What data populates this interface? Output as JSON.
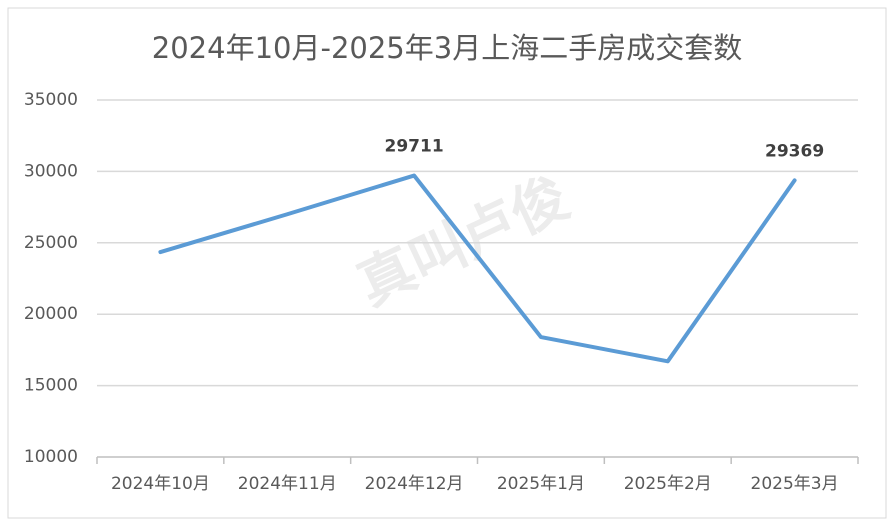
{
  "chart_data": {
    "type": "line",
    "title": "2024年10月-2025年3月上海二手房成交套数",
    "watermark": "真叫卢俊",
    "categories": [
      "2024年10月",
      "2024年11月",
      "2024年12月",
      "2025年1月",
      "2025年2月",
      "2025年3月"
    ],
    "series": [
      {
        "name": "成交套数",
        "color": "#5b9bd5",
        "values": [
          24350,
          27000,
          29711,
          18400,
          16700,
          29369
        ],
        "value_labels": [
          null,
          null,
          "29711",
          null,
          null,
          "29369"
        ]
      }
    ],
    "ylim": [
      10000,
      35000
    ],
    "yticks": [
      10000,
      15000,
      20000,
      25000,
      30000,
      35000
    ],
    "grid": true
  }
}
